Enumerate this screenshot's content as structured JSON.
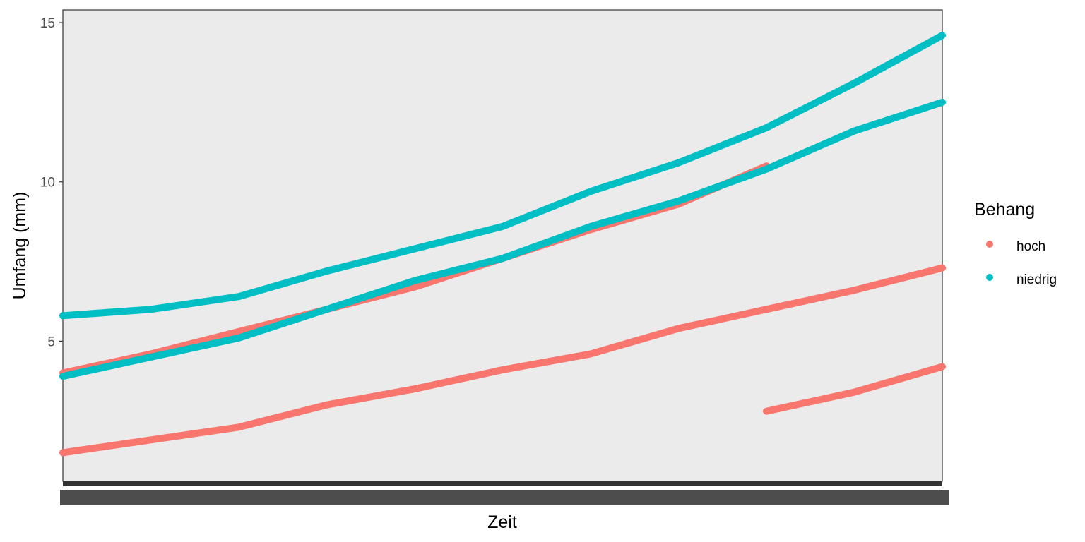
{
  "chart_data": {
    "type": "scatter",
    "xlabel": "Zeit",
    "ylabel": "Umfang (mm)",
    "ylim": [
      0.6,
      15.4
    ],
    "y_ticks": [
      5,
      10,
      15
    ],
    "x_tick_labels": "overlapping, unreadable",
    "grid": false,
    "legend_position": "right",
    "legend": {
      "title": "Behang",
      "entries": [
        {
          "label": "hoch",
          "color": "#F8766D"
        },
        {
          "label": "niedrig",
          "color": "#00BFC4"
        }
      ]
    },
    "series": [
      {
        "group": "hoch",
        "x": [
          0,
          0.1,
          0.2,
          0.3,
          0.4,
          0.5,
          0.6,
          0.7,
          0.8,
          0.9,
          1.0
        ],
        "values": [
          1.5,
          1.9,
          2.3,
          3.0,
          3.5,
          4.1,
          4.6,
          5.4,
          6.0,
          6.6,
          7.3
        ]
      },
      {
        "group": "hoch",
        "x": [
          0.8,
          0.85,
          0.9,
          0.95,
          1.0
        ],
        "values": [
          2.8,
          3.1,
          3.4,
          3.8,
          4.2
        ]
      },
      {
        "group": "hoch",
        "x": [
          0,
          0.1,
          0.2,
          0.3,
          0.4,
          0.5,
          0.6,
          0.7,
          0.8
        ],
        "values": [
          4.0,
          4.6,
          5.3,
          6.0,
          6.7,
          7.6,
          8.5,
          9.3,
          10.5
        ]
      },
      {
        "group": "niedrig",
        "x": [
          0,
          0.1,
          0.2,
          0.3,
          0.4,
          0.5,
          0.6,
          0.7,
          0.8,
          0.9,
          1.0
        ],
        "values": [
          5.8,
          6.0,
          6.4,
          7.2,
          7.9,
          8.6,
          9.7,
          10.6,
          11.7,
          13.1,
          14.6
        ]
      },
      {
        "group": "niedrig",
        "x": [
          0,
          0.1,
          0.2,
          0.3,
          0.4,
          0.5,
          0.6,
          0.7,
          0.8,
          0.9,
          1.0
        ],
        "values": [
          3.9,
          4.5,
          5.1,
          6.0,
          6.9,
          7.6,
          8.6,
          9.4,
          10.4,
          11.6,
          12.5
        ]
      }
    ]
  }
}
